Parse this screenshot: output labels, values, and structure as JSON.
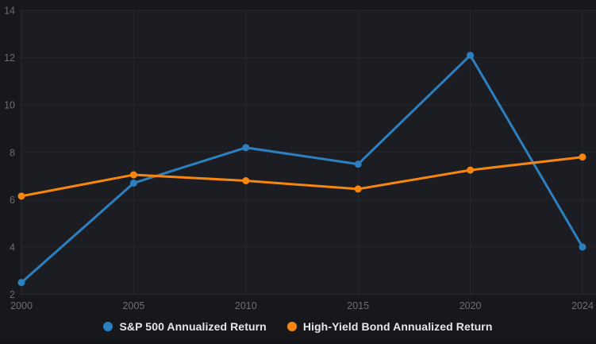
{
  "chart_data": {
    "type": "line",
    "categories": [
      "2000",
      "2005",
      "2010",
      "2015",
      "2020",
      "2024"
    ],
    "series": [
      {
        "name": "S&P 500 Annualized Return",
        "color": "#2d80bf",
        "values": [
          2.5,
          6.7,
          8.2,
          7.5,
          12.1,
          4.0
        ]
      },
      {
        "name": "High-Yield Bond Annualized Return",
        "color": "#f6860f",
        "values": [
          6.15,
          7.05,
          6.8,
          6.45,
          7.25,
          7.8
        ]
      }
    ],
    "title": "",
    "xlabel": "",
    "ylabel": "",
    "ylim": [
      2,
      14
    ],
    "yticks": [
      2,
      4,
      6,
      8,
      10,
      12,
      14
    ],
    "grid": true,
    "legend_position": "bottom"
  },
  "colors": {
    "page_background": "#17181c",
    "plot_background": "#1c1d22",
    "gridline": "#26272c",
    "tick_label": "#6a6e75",
    "legend_text": "#e6e7ea"
  }
}
